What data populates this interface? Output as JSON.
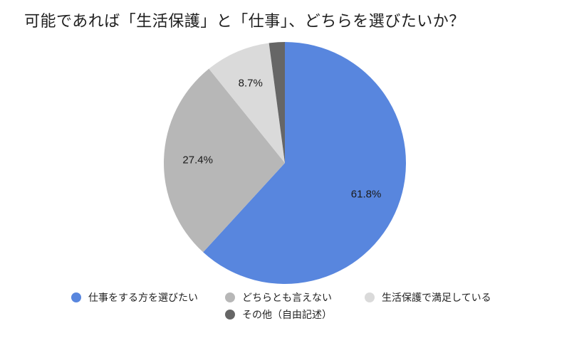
{
  "title": "可能であれば「生活保護」と「仕事」、どちらを選びたいか？",
  "chart_data": {
    "type": "pie",
    "title": "可能であれば「生活保護」と「仕事」、どちらを選びたいか？",
    "categories": [
      "仕事をする方を選びたい",
      "どちらとも言えない",
      "生活保護で満足している",
      "その他（自由記述）"
    ],
    "values": [
      61.8,
      27.4,
      8.7,
      2.1
    ],
    "labels": [
      "61.8%",
      "27.4%",
      "8.7%",
      ""
    ],
    "colors": [
      "#5886de",
      "#b7b7b7",
      "#dadada",
      "#666666"
    ],
    "start_angle_deg": 0,
    "direction": "clockwise",
    "legend_position": "bottom"
  },
  "legend": {
    "items": [
      {
        "label": "仕事をする方を選びたい",
        "color": "#5886de"
      },
      {
        "label": "どちらとも言えない",
        "color": "#b7b7b7"
      },
      {
        "label": "生活保護で満足している",
        "color": "#dadada"
      },
      {
        "label": "その他（自由記述）",
        "color": "#666666"
      }
    ]
  }
}
